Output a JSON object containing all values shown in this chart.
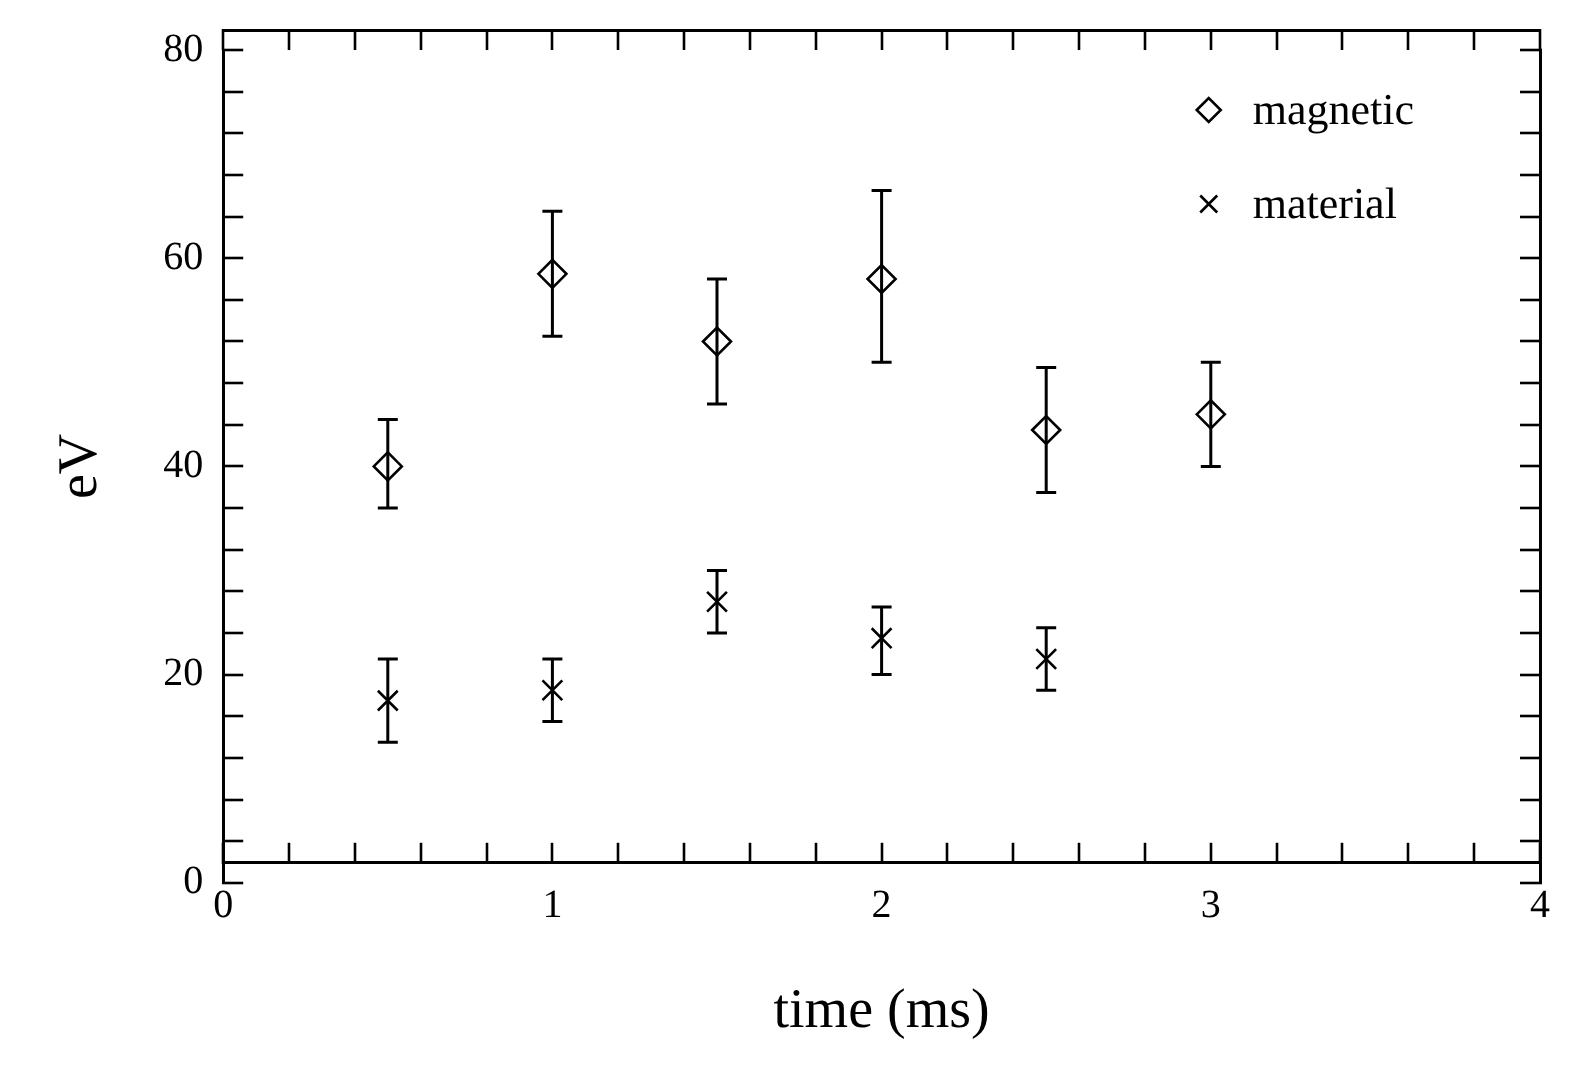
{
  "chart_data": {
    "type": "scatter",
    "xlabel": "time (ms)",
    "ylabel": "eV",
    "xlim": [
      0,
      4
    ],
    "ylim": [
      0,
      80
    ],
    "xticks": [
      0,
      {
        "value": 0.2,
        "label": null
      },
      {
        "value": 0.4,
        "label": null
      },
      {
        "value": 0.6,
        "label": null
      },
      {
        "value": 0.8,
        "label": null
      },
      1,
      {
        "value": 1.2,
        "label": null
      },
      {
        "value": 1.4,
        "label": null
      },
      {
        "value": 1.6,
        "label": null
      },
      {
        "value": 1.8,
        "label": null
      },
      2,
      {
        "value": 2.2,
        "label": null
      },
      {
        "value": 2.4,
        "label": null
      },
      {
        "value": 2.6,
        "label": null
      },
      {
        "value": 2.8,
        "label": null
      },
      3,
      {
        "value": 3.2,
        "label": null
      },
      {
        "value": 3.4,
        "label": null
      },
      {
        "value": 3.6,
        "label": null
      },
      {
        "value": 3.8,
        "label": null
      },
      4
    ],
    "yticks": [
      0,
      {
        "value": 4,
        "label": null
      },
      {
        "value": 8,
        "label": null
      },
      {
        "value": 12,
        "label": null
      },
      {
        "value": 16,
        "label": null
      },
      20,
      {
        "value": 24,
        "label": null
      },
      {
        "value": 28,
        "label": null
      },
      {
        "value": 32,
        "label": null
      },
      {
        "value": 36,
        "label": null
      },
      40,
      {
        "value": 44,
        "label": null
      },
      {
        "value": 48,
        "label": null
      },
      {
        "value": 52,
        "label": null
      },
      {
        "value": 56,
        "label": null
      },
      60,
      {
        "value": 64,
        "label": null
      },
      {
        "value": 68,
        "label": null
      },
      {
        "value": 72,
        "label": null
      },
      {
        "value": 76,
        "label": null
      },
      80
    ],
    "grid": false,
    "legend": "top right",
    "series": [
      {
        "name": "magnetic",
        "color": "#000000",
        "marker": "diamond",
        "x": [
          0.5,
          1,
          1.5,
          2,
          2.5,
          3
        ],
        "values": [
          40,
          58.5,
          52,
          58,
          43.5,
          45
        ],
        "errors": [
          [
            36,
            44.5
          ],
          [
            52.5,
            64.5
          ],
          [
            46,
            58
          ],
          [
            50,
            66.5
          ],
          [
            37.5,
            49.5
          ],
          [
            40,
            50
          ]
        ]
      },
      {
        "name": "material",
        "color": "#000000",
        "marker": "cross",
        "x": [
          0.5,
          1,
          1.5,
          2,
          2.5
        ],
        "values": [
          17.5,
          18.5,
          27,
          23.5,
          21.5
        ],
        "errors": [
          [
            13.5,
            21.5
          ],
          [
            15.5,
            21.5
          ],
          [
            24,
            30
          ],
          [
            20,
            26.5
          ],
          [
            18.5,
            24.5
          ]
        ]
      }
    ]
  }
}
